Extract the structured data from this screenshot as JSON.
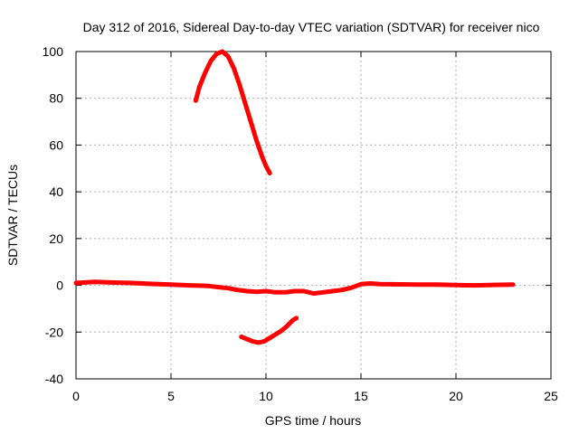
{
  "chart_data": {
    "type": "line",
    "title": "Day 312 of 2016, Sidereal Day-to-day VTEC variation (SDTVAR) for receiver nico",
    "xlabel": "GPS time / hours",
    "ylabel": "SDTVAR / TECUs",
    "xlim": [
      0,
      25
    ],
    "ylim": [
      -40,
      100
    ],
    "xticks": [
      "0",
      "5",
      "10",
      "15",
      "20",
      "25"
    ],
    "yticks": [
      "-40",
      "-20",
      "0",
      "20",
      "40",
      "60",
      "80",
      "100"
    ],
    "grid": true,
    "legend": "none",
    "series_color": "#ff0000",
    "series": [
      {
        "x": [
          0,
          1,
          2,
          3,
          4,
          5,
          6,
          7,
          7.5,
          8,
          8.5,
          9,
          9.5,
          10,
          10.5,
          11,
          11.5,
          12,
          12.5,
          13,
          13.5,
          14,
          14.5,
          15,
          15.5,
          16,
          17,
          18,
          19,
          20,
          21,
          22,
          23
        ],
        "y": [
          1,
          1.5,
          1.2,
          1,
          0.6,
          0.3,
          0,
          -0.3,
          -0.8,
          -1.2,
          -2,
          -2.5,
          -2.8,
          -2.5,
          -3,
          -3,
          -2.5,
          -2.5,
          -3.5,
          -3,
          -2.5,
          -2,
          -1,
          0.5,
          0.8,
          0.5,
          0.4,
          0.3,
          0.3,
          0.1,
          0,
          0.2,
          0.3
        ]
      },
      {
        "x": [
          6.3,
          6.5,
          6.8,
          7.1,
          7.4,
          7.7,
          8.0,
          8.3,
          8.6,
          8.9,
          9.2,
          9.5,
          9.8,
          10.0,
          10.2
        ],
        "y": [
          79,
          85,
          91,
          96,
          99,
          100,
          98,
          93,
          86,
          78,
          70,
          62,
          55,
          51,
          48
        ]
      },
      {
        "x": [
          8.7,
          9.0,
          9.3,
          9.6,
          9.9,
          10.2,
          10.5,
          10.8,
          11.1,
          11.4,
          11.6
        ],
        "y": [
          -22,
          -23,
          -24,
          -24.5,
          -24,
          -22.5,
          -21,
          -19.5,
          -17.5,
          -15,
          -14
        ]
      }
    ]
  }
}
